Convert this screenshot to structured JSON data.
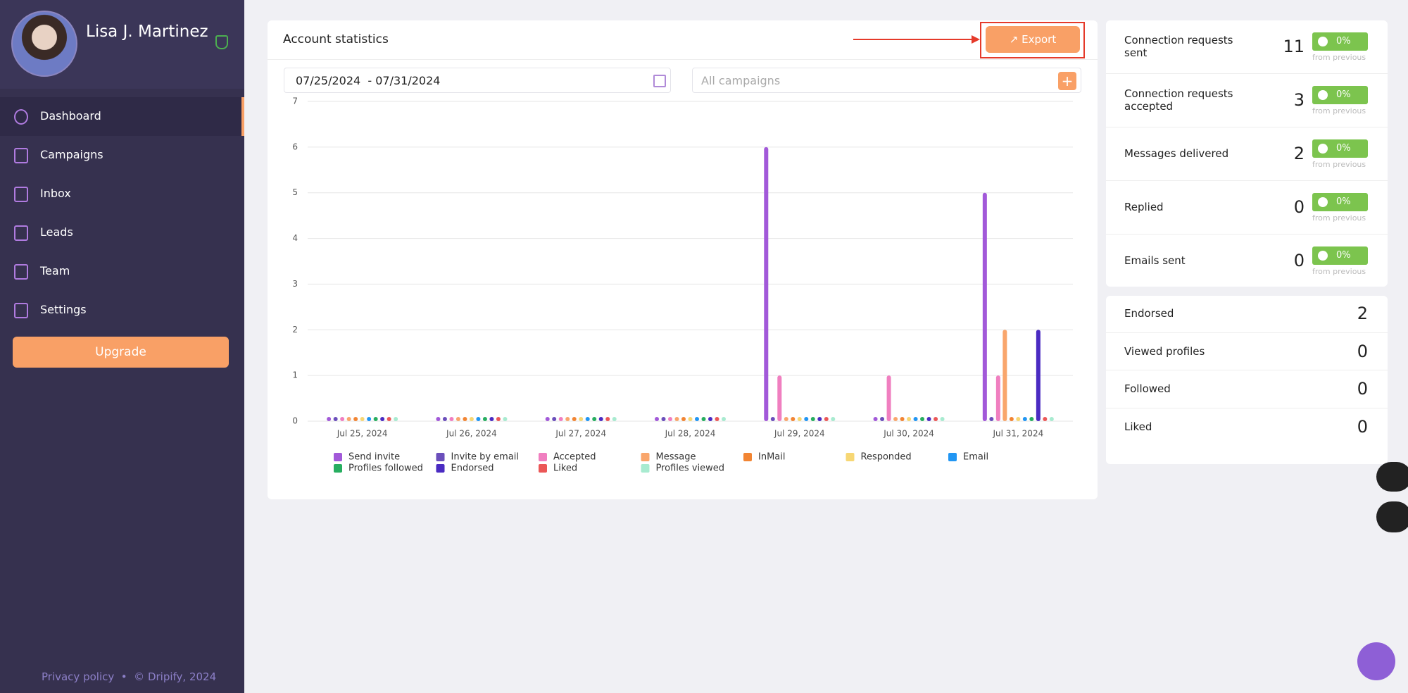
{
  "sidebar": {
    "user_name": "Lisa J. Martinez",
    "nav": [
      "Dashboard",
      "Campaigns",
      "Inbox",
      "Leads",
      "Team",
      "Settings"
    ],
    "upgrade": "Upgrade",
    "privacy": "Privacy policy",
    "copyright": "© Dripify, 2024"
  },
  "header": {
    "title": "Account statistics",
    "export": "Export"
  },
  "filters": {
    "date_range": "07/25/2024  - 07/31/2024",
    "campaigns": "All campaigns"
  },
  "chart_data": {
    "type": "bar",
    "categories": [
      "Jul 25, 2024",
      "Jul 26, 2024",
      "Jul 27, 2024",
      "Jul 28, 2024",
      "Jul 29, 2024",
      "Jul 30, 2024",
      "Jul 31, 2024"
    ],
    "series": [
      {
        "name": "Send invite",
        "color": "#a259d9",
        "values": [
          0,
          0,
          0,
          0,
          6,
          0,
          5
        ]
      },
      {
        "name": "Invite by email",
        "color": "#6b4fbb",
        "values": [
          0,
          0,
          0,
          0,
          0,
          0,
          0
        ]
      },
      {
        "name": "Accepted",
        "color": "#f07fc0",
        "values": [
          0,
          0,
          0,
          0,
          1,
          1,
          1
        ]
      },
      {
        "name": "Message",
        "color": "#f9a66c",
        "values": [
          0,
          0,
          0,
          0,
          0,
          0,
          2
        ]
      },
      {
        "name": "InMail",
        "color": "#f28533",
        "values": [
          0,
          0,
          0,
          0,
          0,
          0,
          0
        ]
      },
      {
        "name": "Responded",
        "color": "#f7d774",
        "values": [
          0,
          0,
          0,
          0,
          0,
          0,
          0
        ]
      },
      {
        "name": "Email",
        "color": "#2196f3",
        "values": [
          0,
          0,
          0,
          0,
          0,
          0,
          0
        ]
      },
      {
        "name": "Profiles followed",
        "color": "#27ae60",
        "values": [
          0,
          0,
          0,
          0,
          0,
          0,
          0
        ]
      },
      {
        "name": "Endorsed",
        "color": "#4a2bc2",
        "values": [
          0,
          0,
          0,
          0,
          0,
          0,
          2
        ]
      },
      {
        "name": "Liked",
        "color": "#eb5757",
        "values": [
          0,
          0,
          0,
          0,
          0,
          0,
          0
        ]
      },
      {
        "name": "Profiles viewed",
        "color": "#a8ebd0",
        "values": [
          0,
          0,
          0,
          0,
          0,
          0,
          0
        ]
      }
    ],
    "ylim": [
      0,
      7
    ],
    "yticks": [
      0,
      1,
      2,
      3,
      4,
      5,
      6,
      7
    ],
    "grid": true
  },
  "stats": [
    {
      "label": "Connection requests sent",
      "value": 11,
      "change": "0%",
      "note": "from previous"
    },
    {
      "label": "Connection requests accepted",
      "value": 3,
      "change": "0%",
      "note": "from previous"
    },
    {
      "label": "Messages delivered",
      "value": 2,
      "change": "0%",
      "note": "from previous"
    },
    {
      "label": "Replied",
      "value": 0,
      "change": "0%",
      "note": "from previous"
    },
    {
      "label": "Emails sent",
      "value": 0,
      "change": "0%",
      "note": "from previous"
    }
  ],
  "counts": [
    {
      "label": "Endorsed",
      "value": 2
    },
    {
      "label": "Viewed profiles",
      "value": 0
    },
    {
      "label": "Followed",
      "value": 0
    },
    {
      "label": "Liked",
      "value": 0
    }
  ]
}
